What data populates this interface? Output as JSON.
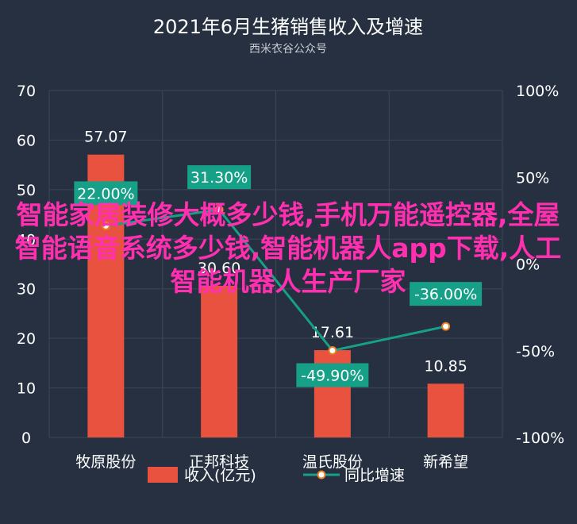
{
  "chart_data": {
    "type": "bar",
    "title": "2021年6月生猪销售收入及增速",
    "subtitle": "西米衣谷公众号",
    "categories": [
      "牧原股份",
      "正邦科技",
      "温氏股份",
      "新希望"
    ],
    "series": [
      {
        "name": "收入(亿元)",
        "type": "bar",
        "axis": "left",
        "values": [
          57.07,
          30.6,
          17.61,
          10.85
        ],
        "labels": [
          "57.07",
          "30.60",
          "17.61",
          "10.85"
        ],
        "color": "#e8523f"
      },
      {
        "name": "同比增速",
        "type": "line",
        "axis": "right",
        "values": [
          22.0,
          31.3,
          -49.9,
          -36.0
        ],
        "labels": [
          "22.00%",
          "31.30%",
          "-49.90%",
          "-36.00%"
        ],
        "color": "#16a088"
      }
    ],
    "y_left": {
      "min": 0,
      "max": 70,
      "ticks": [
        "0",
        "10",
        "20",
        "30",
        "40",
        "50",
        "60",
        "70"
      ]
    },
    "y_right": {
      "min": -100,
      "max": 100,
      "ticks": [
        "-100%",
        "-50%",
        "0%",
        "50%",
        "100%"
      ]
    },
    "grid": true,
    "legend_position": "bottom"
  },
  "overlay_text": "智能家居装修大概多少钱,手机万能遥控器,全屋智能语音系统多少钱,智能机器人app下载,人工智能机器人生产厂家",
  "colors": {
    "background": "#263040",
    "grid": "#3b4656",
    "text": "#ffffff",
    "subtitle": "#c8ccd2",
    "overlay": "#ff2fb0",
    "marker_fill": "#ffffff",
    "marker_stroke": "#e67e22"
  }
}
